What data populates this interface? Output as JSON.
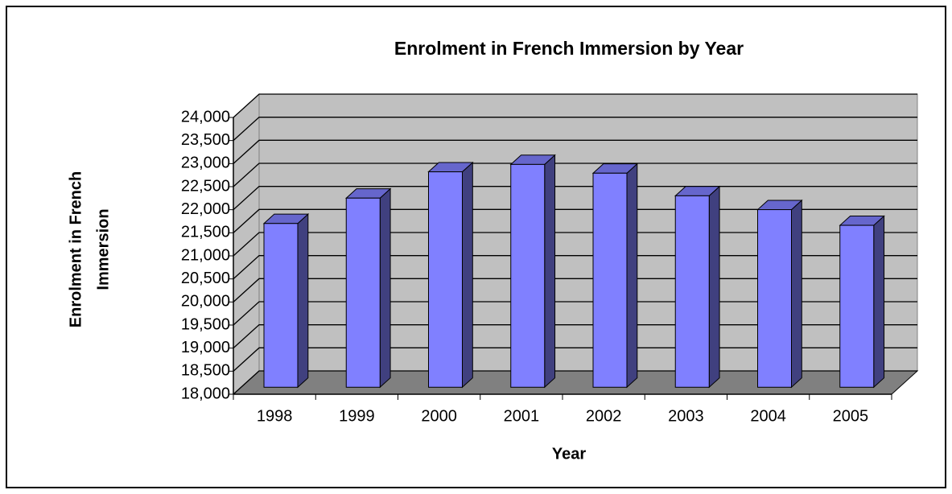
{
  "chart_data": {
    "type": "bar3d",
    "title": "Enrolment in French Immersion by Year",
    "x_label": "Year",
    "y_label": [
      "Enrolment in French",
      "Immersion"
    ],
    "categories": [
      "1998",
      "1999",
      "2000",
      "2001",
      "2002",
      "2003",
      "2004",
      "2005"
    ],
    "values": [
      21550,
      22100,
      22670,
      22830,
      22640,
      22150,
      21850,
      21510
    ],
    "color": "#8080ff",
    "ylim": [
      18000,
      24000
    ],
    "yticks": [
      {
        "value": 18000,
        "label": "18,000"
      },
      {
        "value": 18500,
        "label": "18,500"
      },
      {
        "value": 19000,
        "label": "19,000"
      },
      {
        "value": 19500,
        "label": "19,500"
      },
      {
        "value": 20000,
        "label": "20,000"
      },
      {
        "value": 20500,
        "label": "20,500"
      },
      {
        "value": 21000,
        "label": "21,000"
      },
      {
        "value": 21500,
        "label": "21,500"
      },
      {
        "value": 22000,
        "label": "22,000"
      },
      {
        "value": 22500,
        "label": "22,500"
      },
      {
        "value": 23000,
        "label": "23,000"
      },
      {
        "value": 23500,
        "label": "23,500"
      },
      {
        "value": 24000,
        "label": "24,000"
      }
    ],
    "grid": true
  }
}
